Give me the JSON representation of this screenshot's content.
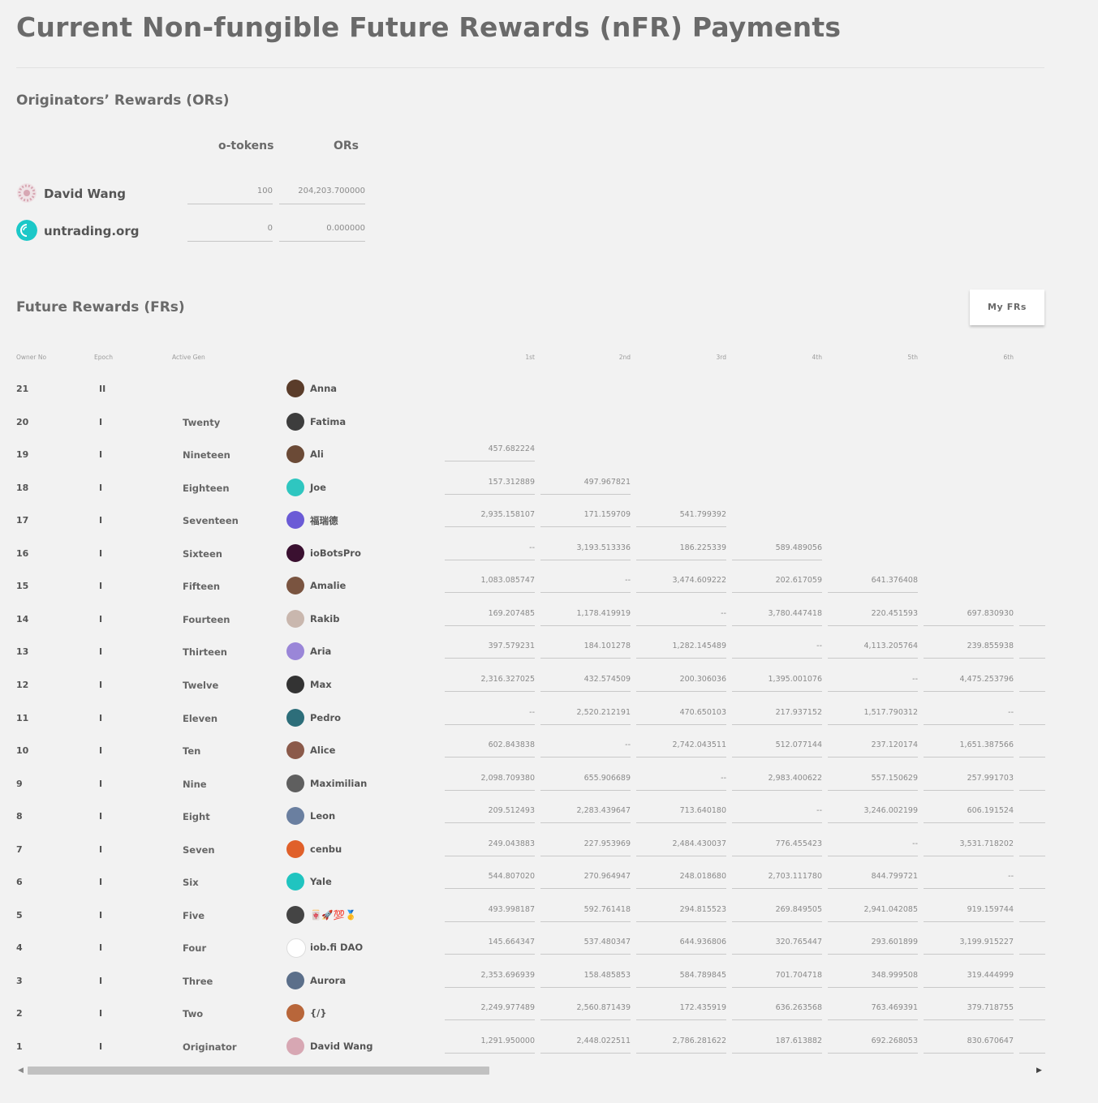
{
  "page": {
    "title": "Current Non-fungible Future Rewards (nFR) Payments"
  },
  "originators": {
    "section_title": "Originators’ Rewards (ORs)",
    "columns": [
      "o-tokens",
      "ORs"
    ],
    "rows": [
      {
        "name": "David Wang",
        "o_tokens": "100",
        "ors": "204,203.700000",
        "avatar_color": "#d7a7b3"
      },
      {
        "name": "untrading.org",
        "o_tokens": "0",
        "ors": "0.000000",
        "avatar_color": "#1cc8c8"
      }
    ]
  },
  "future_rewards": {
    "section_title": "Future Rewards (FRs)",
    "my_frs_label": "My FRs",
    "columns": {
      "owner_no": "Owner No",
      "epoch": "Epoch",
      "active_gen": "Active Gen",
      "gens": [
        "1st",
        "2nd",
        "3rd",
        "4th",
        "5th",
        "6th"
      ]
    },
    "rows": [
      {
        "owner_no": "21",
        "epoch": "II",
        "gen": "",
        "name": "Anna",
        "avatar_color": "#5a3c2a",
        "values": []
      },
      {
        "owner_no": "20",
        "epoch": "I",
        "gen": "Twenty",
        "name": "Fatima",
        "avatar_color": "#3d3d3d",
        "values": []
      },
      {
        "owner_no": "19",
        "epoch": "I",
        "gen": "Nineteen",
        "name": "Ali",
        "avatar_color": "#6b4a36",
        "values": [
          "457.682224"
        ]
      },
      {
        "owner_no": "18",
        "epoch": "I",
        "gen": "Eighteen",
        "name": "Joe",
        "avatar_color": "#2fc6c0",
        "values": [
          "157.312889",
          "497.967821"
        ]
      },
      {
        "owner_no": "17",
        "epoch": "I",
        "gen": "Seventeen",
        "name": "福瑞德",
        "avatar_color": "#6b5bd6",
        "values": [
          "2,935.158107",
          "171.159709",
          "541.799392"
        ]
      },
      {
        "owner_no": "16",
        "epoch": "I",
        "gen": "Sixteen",
        "name": "ioBotsPro",
        "avatar_color": "#3a1030",
        "values": [
          "--",
          "3,193.513336",
          "186.225339",
          "589.489056"
        ]
      },
      {
        "owner_no": "15",
        "epoch": "I",
        "gen": "Fifteen",
        "name": "Amalie",
        "avatar_color": "#7a5440",
        "values": [
          "1,083.085747",
          "--",
          "3,474.609222",
          "202.617059",
          "641.376408"
        ]
      },
      {
        "owner_no": "14",
        "epoch": "I",
        "gen": "Fourteen",
        "name": "Rakib",
        "avatar_color": "#c9b7ae",
        "values": [
          "169.207485",
          "1,178.419919",
          "--",
          "3,780.447418",
          "220.451593",
          "697.830930"
        ]
      },
      {
        "owner_no": "13",
        "epoch": "I",
        "gen": "Thirteen",
        "name": "Aria",
        "avatar_color": "#9a86d8",
        "values": [
          "397.579231",
          "184.101278",
          "1,282.145489",
          "--",
          "4,113.205764",
          "239.855938"
        ]
      },
      {
        "owner_no": "12",
        "epoch": "I",
        "gen": "Twelve",
        "name": "Max",
        "avatar_color": "#333333",
        "values": [
          "2,316.327025",
          "432.574509",
          "200.306036",
          "1,395.001076",
          "--",
          "4,475.253796"
        ]
      },
      {
        "owner_no": "11",
        "epoch": "I",
        "gen": "Eleven",
        "name": "Pedro",
        "avatar_color": "#2d6e7a",
        "values": [
          "--",
          "2,520.212191",
          "470.650103",
          "217.937152",
          "1,517.790312",
          "--"
        ]
      },
      {
        "owner_no": "10",
        "epoch": "I",
        "gen": "Ten",
        "name": "Alice",
        "avatar_color": "#8b5a4a",
        "values": [
          "602.843838",
          "--",
          "2,742.043511",
          "512.077144",
          "237.120174",
          "1,651.387566"
        ]
      },
      {
        "owner_no": "9",
        "epoch": "I",
        "gen": "Nine",
        "name": "Maximilian",
        "avatar_color": "#5f5f5f",
        "values": [
          "2,098.709380",
          "655.906689",
          "--",
          "2,983.400622",
          "557.150629",
          "257.991703"
        ]
      },
      {
        "owner_no": "8",
        "epoch": "I",
        "gen": "Eight",
        "name": "Leon",
        "avatar_color": "#6a7fa0",
        "values": [
          "209.512493",
          "2,283.439647",
          "713.640180",
          "--",
          "3,246.002199",
          "606.191524"
        ]
      },
      {
        "owner_no": "7",
        "epoch": "I",
        "gen": "Seven",
        "name": "cenbu",
        "avatar_color": "#e0602a",
        "values": [
          "249.043883",
          "227.953969",
          "2,484.430037",
          "776.455423",
          "--",
          "3,531.718202"
        ]
      },
      {
        "owner_no": "6",
        "epoch": "I",
        "gen": "Six",
        "name": "Yale",
        "avatar_color": "#20c4c0",
        "values": [
          "544.807020",
          "270.964947",
          "248.018680",
          "2,703.111780",
          "844.799721",
          "--"
        ]
      },
      {
        "owner_no": "5",
        "epoch": "I",
        "gen": "Five",
        "name": "🀄🚀💯🥇",
        "avatar_color": "#444444",
        "values": [
          "493.998187",
          "592.761418",
          "294.815523",
          "269.849505",
          "2,941.042085",
          "919.159744"
        ]
      },
      {
        "owner_no": "4",
        "epoch": "I",
        "gen": "Four",
        "name": "iob.fi DAO",
        "avatar_color": "#ffffff",
        "values": [
          "145.664347",
          "537.480347",
          "644.936806",
          "320.765447",
          "293.601899",
          "3,199.915227"
        ]
      },
      {
        "owner_no": "3",
        "epoch": "I",
        "gen": "Three",
        "name": "Aurora",
        "avatar_color": "#5b6f8a",
        "values": [
          "2,353.696939",
          "158.485853",
          "584.789845",
          "701.704718",
          "348.999508",
          "319.444999"
        ]
      },
      {
        "owner_no": "2",
        "epoch": "I",
        "gen": "Two",
        "name": "{/}",
        "avatar_color": "#b8663a",
        "values": [
          "2,249.977489",
          "2,560.871439",
          "172.435919",
          "636.263568",
          "763.469391",
          "379.718755"
        ]
      },
      {
        "owner_no": "1",
        "epoch": "I",
        "gen": "Originator",
        "name": "David Wang",
        "avatar_color": "#d7a7b3",
        "values": [
          "1,291.950000",
          "2,448.022511",
          "2,786.281622",
          "187.613882",
          "692.268053",
          "830.670647"
        ]
      }
    ],
    "scrollbar_fraction": 0.46
  }
}
